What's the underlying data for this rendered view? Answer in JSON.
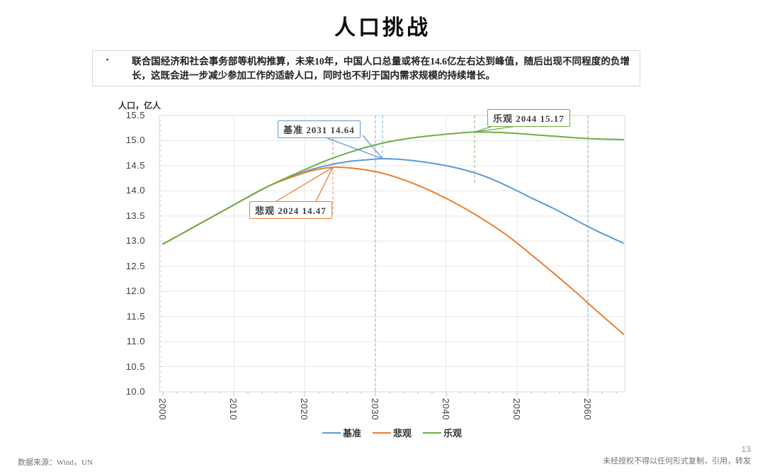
{
  "page": {
    "title": "人口挑战"
  },
  "summary": {
    "bullet": "▪",
    "text": "联合国经济和社会事务部等机构推算，未来10年，中国人口总量或将在14.6亿左右达到峰值，随后出现不同程度的负增长，这既会进一步减少参加工作的适龄人口，同时也不利于国内需求规模的持续增长。"
  },
  "chart_data": {
    "type": "line",
    "ylabel": "人口，亿人",
    "ylim": [
      10.0,
      15.5
    ],
    "ytick_step": 0.5,
    "xlim": [
      2000,
      2065
    ],
    "xticks": [
      2000,
      2010,
      2020,
      2030,
      2040,
      2050,
      2060
    ],
    "grid": true,
    "legend_position": "bottom",
    "series": [
      {
        "name": "基准",
        "color": "#5B9BD5",
        "x": [
          2000,
          2005,
          2010,
          2015,
          2020,
          2023,
          2026,
          2029,
          2031,
          2034,
          2037,
          2040,
          2043,
          2046,
          2049,
          2052,
          2055,
          2058,
          2061,
          2065
        ],
        "values": [
          12.94,
          13.33,
          13.72,
          14.1,
          14.38,
          14.5,
          14.58,
          14.62,
          14.64,
          14.62,
          14.57,
          14.5,
          14.4,
          14.26,
          14.07,
          13.86,
          13.66,
          13.44,
          13.22,
          12.96
        ]
      },
      {
        "name": "悲观",
        "color": "#ED7D31",
        "x": [
          2000,
          2005,
          2010,
          2015,
          2020,
          2022,
          2024,
          2026,
          2028,
          2031,
          2034,
          2037,
          2040,
          2043,
          2046,
          2049,
          2052,
          2055,
          2058,
          2061,
          2065
        ],
        "values": [
          12.94,
          13.33,
          13.72,
          14.1,
          14.36,
          14.43,
          14.47,
          14.46,
          14.43,
          14.35,
          14.22,
          14.05,
          13.85,
          13.62,
          13.36,
          13.07,
          12.73,
          12.38,
          12.02,
          11.64,
          11.15
        ]
      },
      {
        "name": "乐观",
        "color": "#70AD47",
        "x": [
          2000,
          2005,
          2010,
          2015,
          2020,
          2023,
          2026,
          2029,
          2032,
          2035,
          2038,
          2041,
          2044,
          2048,
          2052,
          2056,
          2060,
          2065
        ],
        "values": [
          12.94,
          13.33,
          13.72,
          14.1,
          14.42,
          14.6,
          14.75,
          14.88,
          14.98,
          15.05,
          15.1,
          15.14,
          15.17,
          15.16,
          15.12,
          15.08,
          15.04,
          15.02
        ]
      }
    ],
    "annotations": [
      {
        "label": "基准 2031 14.64",
        "series": "基准",
        "year": 2031,
        "value": 14.64,
        "color": "#5B9BD5"
      },
      {
        "label": "悲观 2024 14.47",
        "series": "悲观",
        "year": 2024,
        "value": 14.47,
        "color": "#ED7D31"
      },
      {
        "label": "乐观 2044 15.17",
        "series": "乐观",
        "year": 2044,
        "value": 15.17,
        "color": "#70AD47"
      }
    ],
    "vlines": [
      {
        "year": 2024,
        "v1": 15.07,
        "v2": 13.5,
        "color": "#F3AE7E"
      },
      {
        "year": 2030,
        "v1": 15.5,
        "v2": 10.0,
        "color": "#A5C8E9"
      },
      {
        "year": 2031,
        "v1": 15.5,
        "v2": 14.66,
        "color": "#A5C8E9"
      },
      {
        "year": 2044,
        "v1": 15.5,
        "v2": 14.12,
        "color": "#A5D28C"
      },
      {
        "year": 2060,
        "v1": 15.5,
        "v2": 10.0,
        "color": "#A5C8E9"
      }
    ],
    "legend": [
      "基准",
      "悲观",
      "乐观"
    ]
  },
  "footer": {
    "source": "数据来源：Wind，UN",
    "page_number": "13",
    "disclaimer": "未经授权不得以任何形式复制，引用，转发"
  }
}
